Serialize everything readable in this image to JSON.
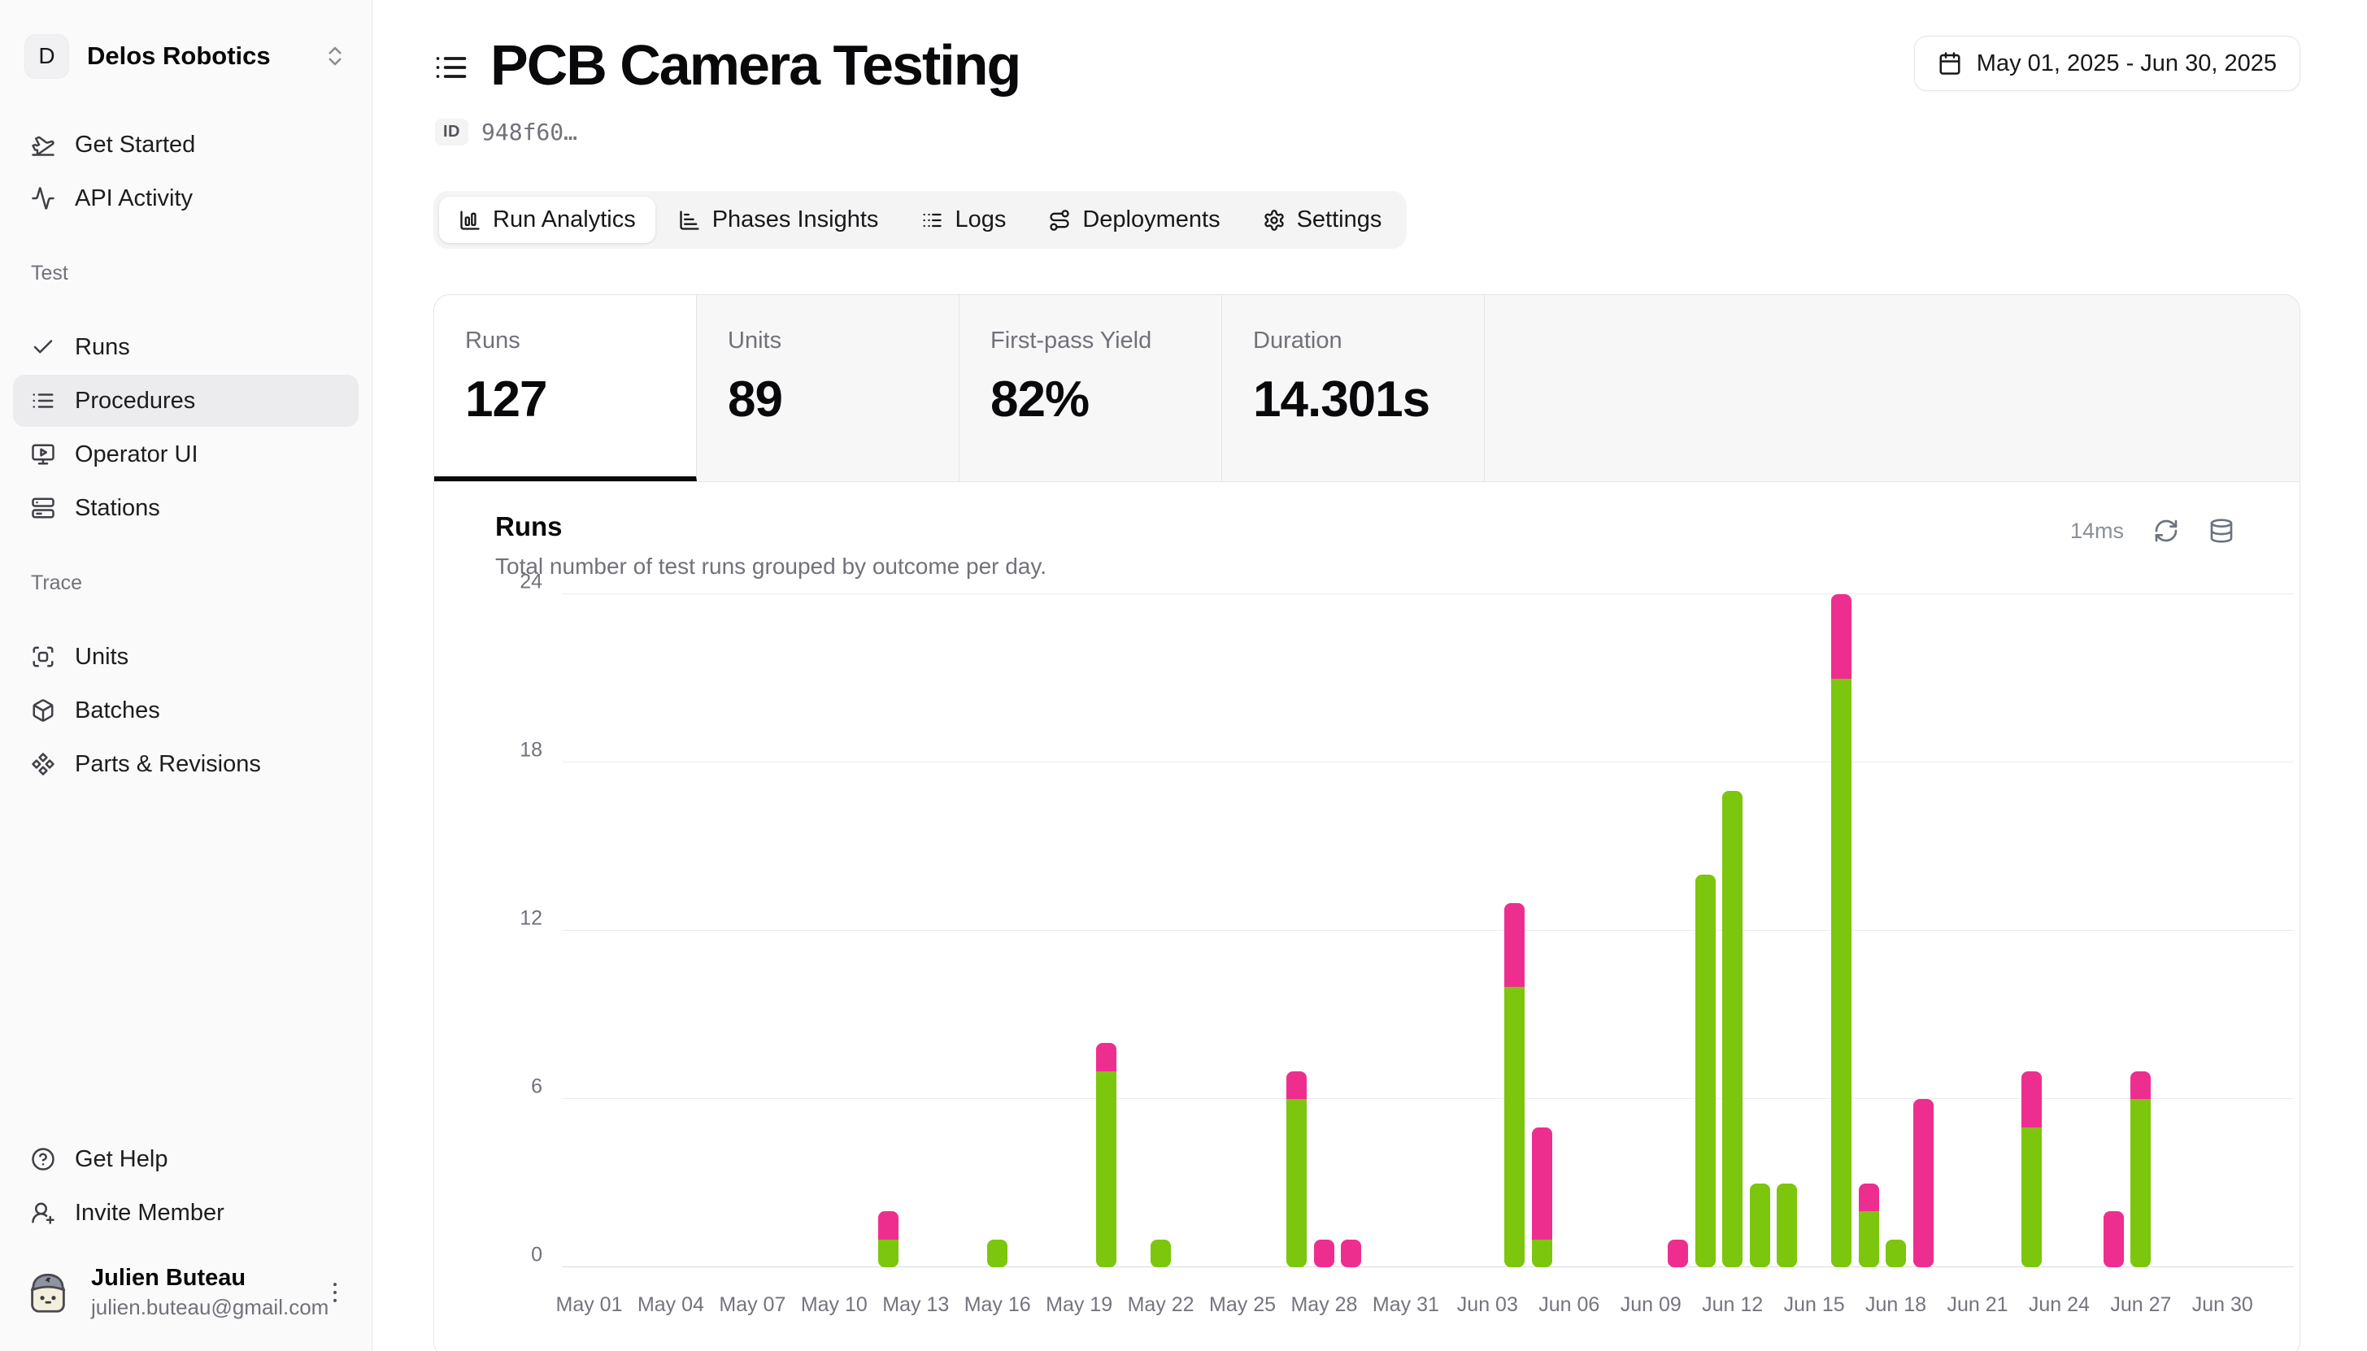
{
  "colors": {
    "pass": "#7cc60d",
    "fail": "#ee2e8f",
    "sidebar_bg": "#fafafa",
    "border": "#e4e4e7",
    "muted_text": "#71717a",
    "text": "#09090b",
    "panel_gray": "#f7f7f8"
  },
  "sidebar": {
    "org": {
      "initial": "D",
      "name": "Delos Robotics"
    },
    "nav_top": [
      {
        "id": "get-started",
        "icon": "plane-takeoff",
        "label": "Get Started"
      },
      {
        "id": "api-activity",
        "icon": "activity",
        "label": "API Activity"
      }
    ],
    "sections": [
      {
        "label": "Test",
        "items": [
          {
            "id": "runs",
            "icon": "check",
            "label": "Runs",
            "active": false
          },
          {
            "id": "procedures",
            "icon": "list",
            "label": "Procedures",
            "active": true
          },
          {
            "id": "operator-ui",
            "icon": "monitor-play",
            "label": "Operator UI",
            "active": false
          },
          {
            "id": "stations",
            "icon": "server",
            "label": "Stations",
            "active": false
          }
        ]
      },
      {
        "label": "Trace",
        "items": [
          {
            "id": "units",
            "icon": "scan-box",
            "label": "Units",
            "active": false
          },
          {
            "id": "batches",
            "icon": "box",
            "label": "Batches",
            "active": false
          },
          {
            "id": "parts-revisions",
            "icon": "component",
            "label": "Parts & Revisions",
            "active": false
          }
        ]
      }
    ],
    "nav_bottom": [
      {
        "id": "get-help",
        "icon": "circle-help",
        "label": "Get Help"
      },
      {
        "id": "invite-member",
        "icon": "user-plus",
        "label": "Invite Member"
      }
    ],
    "user": {
      "name": "Julien Buteau",
      "email": "julien.buteau@gmail.com"
    }
  },
  "header": {
    "title": "PCB Camera Testing",
    "id_label": "ID",
    "id_value": "948f60…",
    "date_range": "May 01, 2025 - Jun 30, 2025"
  },
  "tabs": [
    {
      "id": "run-analytics",
      "icon": "chart-column-box",
      "label": "Run Analytics",
      "active": true
    },
    {
      "id": "phases-insights",
      "icon": "chart-bar",
      "label": "Phases Insights",
      "active": false
    },
    {
      "id": "logs",
      "icon": "list-logs",
      "label": "Logs",
      "active": false
    },
    {
      "id": "deployments",
      "icon": "route",
      "label": "Deployments",
      "active": false
    },
    {
      "id": "settings",
      "icon": "settings",
      "label": "Settings",
      "active": false
    }
  ],
  "stats": [
    {
      "id": "runs",
      "label": "Runs",
      "value": "127",
      "active": true
    },
    {
      "id": "units",
      "label": "Units",
      "value": "89",
      "active": false
    },
    {
      "id": "first-pass-yield",
      "label": "First-pass Yield",
      "value": "82%",
      "active": false
    },
    {
      "id": "duration",
      "label": "Duration",
      "value": "14.301s",
      "active": false
    }
  ],
  "chart_card": {
    "title": "Runs",
    "subtitle": "Total number of test runs grouped by outcome per day.",
    "latency": "14ms"
  },
  "chart_data": {
    "type": "bar",
    "stacked": true,
    "title": "Runs",
    "xlabel": "",
    "ylabel": "",
    "ylim": [
      0,
      24
    ],
    "yticks": [
      0,
      6,
      12,
      18,
      24
    ],
    "grid": "horizontal",
    "legend": "none",
    "x_days_total": 61,
    "x_range": [
      "May 01, 2025",
      "Jun 30, 2025"
    ],
    "series": [
      {
        "name": "pass",
        "color": "#7cc60d"
      },
      {
        "name": "fail",
        "color": "#ee2e8f"
      }
    ],
    "tick_labels": [
      {
        "index": 0,
        "label": "May 01"
      },
      {
        "index": 3,
        "label": "May 04"
      },
      {
        "index": 6,
        "label": "May 07"
      },
      {
        "index": 9,
        "label": "May 10"
      },
      {
        "index": 12,
        "label": "May 13"
      },
      {
        "index": 15,
        "label": "May 16"
      },
      {
        "index": 18,
        "label": "May 19"
      },
      {
        "index": 21,
        "label": "May 22"
      },
      {
        "index": 24,
        "label": "May 25"
      },
      {
        "index": 27,
        "label": "May 28"
      },
      {
        "index": 30,
        "label": "May 31"
      },
      {
        "index": 33,
        "label": "Jun 03"
      },
      {
        "index": 36,
        "label": "Jun 06"
      },
      {
        "index": 39,
        "label": "Jun 09"
      },
      {
        "index": 42,
        "label": "Jun 12"
      },
      {
        "index": 45,
        "label": "Jun 15"
      },
      {
        "index": 48,
        "label": "Jun 18"
      },
      {
        "index": 51,
        "label": "Jun 21"
      },
      {
        "index": 54,
        "label": "Jun 24"
      },
      {
        "index": 57,
        "label": "Jun 27"
      },
      {
        "index": 60,
        "label": "Jun 30"
      }
    ],
    "days": [
      {
        "index": 11,
        "date": "May 12",
        "pass": 1,
        "fail": 1
      },
      {
        "index": 15,
        "date": "May 16",
        "pass": 1,
        "fail": 0
      },
      {
        "index": 19,
        "date": "May 20",
        "pass": 7,
        "fail": 1
      },
      {
        "index": 21,
        "date": "May 22",
        "pass": 1,
        "fail": 0
      },
      {
        "index": 26,
        "date": "May 27",
        "pass": 6,
        "fail": 1
      },
      {
        "index": 27,
        "date": "May 28",
        "pass": 0,
        "fail": 1
      },
      {
        "index": 28,
        "date": "May 29",
        "pass": 0,
        "fail": 1
      },
      {
        "index": 34,
        "date": "Jun 04",
        "pass": 10,
        "fail": 3
      },
      {
        "index": 35,
        "date": "Jun 05",
        "pass": 1,
        "fail": 4
      },
      {
        "index": 40,
        "date": "Jun 10",
        "pass": 0,
        "fail": 1
      },
      {
        "index": 41,
        "date": "Jun 11",
        "pass": 14,
        "fail": 0
      },
      {
        "index": 42,
        "date": "Jun 12",
        "pass": 17,
        "fail": 0
      },
      {
        "index": 43,
        "date": "Jun 13",
        "pass": 3,
        "fail": 0
      },
      {
        "index": 44,
        "date": "Jun 14",
        "pass": 3,
        "fail": 0
      },
      {
        "index": 46,
        "date": "Jun 16",
        "pass": 21,
        "fail": 3
      },
      {
        "index": 47,
        "date": "Jun 17",
        "pass": 2,
        "fail": 1
      },
      {
        "index": 48,
        "date": "Jun 18",
        "pass": 1,
        "fail": 0
      },
      {
        "index": 49,
        "date": "Jun 19",
        "pass": 0,
        "fail": 6
      },
      {
        "index": 53,
        "date": "Jun 23",
        "pass": 5,
        "fail": 2
      },
      {
        "index": 56,
        "date": "Jun 26",
        "pass": 0,
        "fail": 2
      },
      {
        "index": 57,
        "date": "Jun 27",
        "pass": 6,
        "fail": 1
      }
    ]
  }
}
